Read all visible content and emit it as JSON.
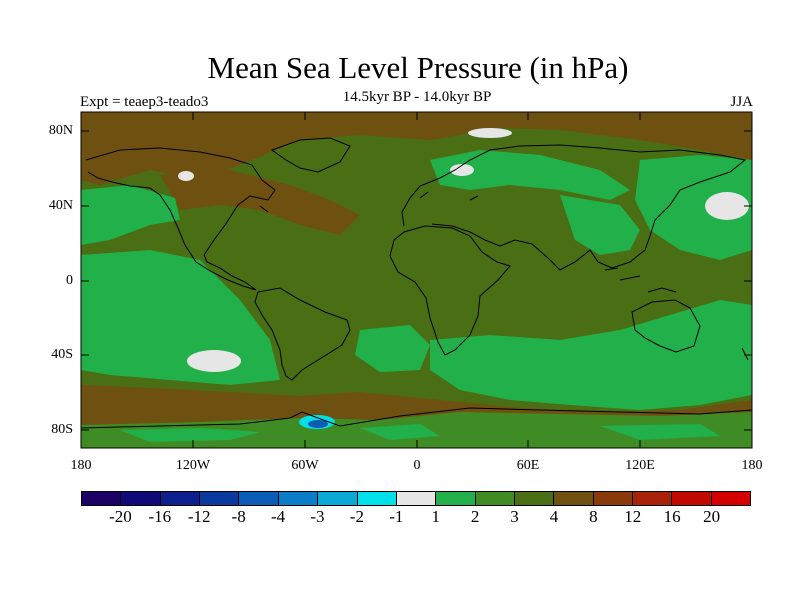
{
  "title": "Mean Sea Level Pressure (in hPa)",
  "subtitle": "14.5kyr BP - 14.0kyr BP",
  "experiment": "Expt = teaep3-teado3",
  "season": "JJA",
  "map": {
    "projection": "cylindrical equidistant",
    "lat_labels": [
      "80N",
      "40N",
      "0",
      "40S",
      "80S"
    ],
    "lon_labels": [
      "180",
      "120W",
      "60W",
      "0",
      "60E",
      "120E",
      "180"
    ]
  },
  "colorbar": {
    "labels": [
      "-20",
      "-16",
      "-12",
      "-8",
      "-4",
      "-3",
      "-2",
      "-1",
      "1",
      "2",
      "3",
      "4",
      "8",
      "12",
      "16",
      "20"
    ],
    "colors": [
      "#1c0066",
      "#100a78",
      "#0c1f8c",
      "#0a3a9e",
      "#0a5cb4",
      "#0a7dc8",
      "#0aa8d4",
      "#00e0e8",
      "#e6e6e6",
      "#22b04a",
      "#3f8c24",
      "#4a6e14",
      "#6e5010",
      "#8a3a0a",
      "#a82208",
      "#c00a00",
      "#d40000"
    ]
  },
  "colors": {
    "dark_green": "#4a6e14",
    "mid_green": "#3f8c24",
    "light_green": "#22b04a",
    "brown": "#6e5010",
    "white_fill": "#e6e6e6",
    "blue_low": "#0a5cb4",
    "cyan_low": "#00e0e8"
  }
}
